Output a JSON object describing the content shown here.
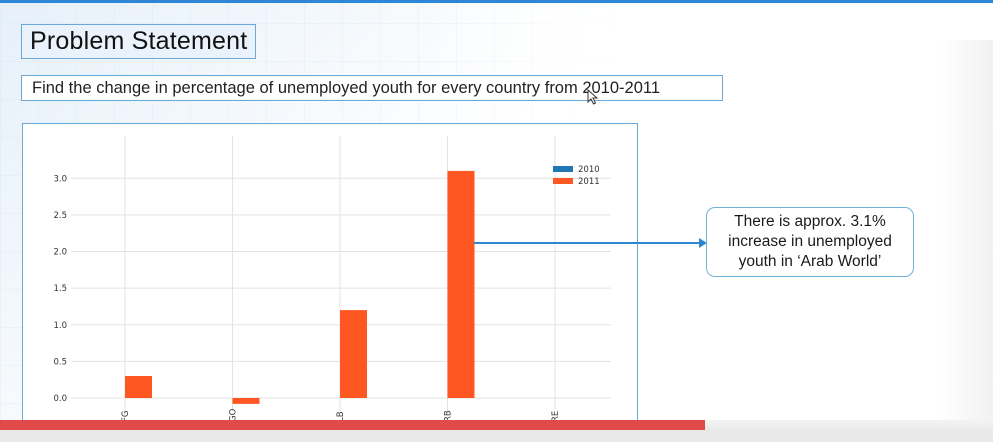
{
  "slide": {
    "title": "Problem Statement",
    "problem_text": "Find the change in percentage of unemployed youth for every country from 2010-2011",
    "callout_text": "There is approx. 3.1% increase in unemployed youth in ‘Arab World’",
    "cursor_icon": "mouse-cursor-icon"
  },
  "video": {
    "progress": 0.71,
    "progress_color": "#e04a4a"
  },
  "colors": {
    "accent": "#2e86d6",
    "series_2010": "#1f77b4",
    "series_2011": "#ff5722"
  },
  "chart_data": {
    "type": "bar",
    "categories": [
      "AFG",
      "AGO",
      "ALB",
      "ARB",
      "ARE"
    ],
    "tick_labels": [
      "FG",
      "GO",
      "LB",
      "RB",
      "RE"
    ],
    "series": [
      {
        "name": "2010",
        "values": [
          0,
          0,
          0,
          0,
          0
        ],
        "color": "#1f77b4"
      },
      {
        "name": "2011",
        "values": [
          0.3,
          -0.08,
          1.2,
          3.1,
          0
        ],
        "color": "#ff5722"
      }
    ],
    "yticks": [
      "0.0",
      "0.5",
      "1.0",
      "1.5",
      "2.0",
      "2.5",
      "3.0"
    ],
    "ylim": [
      -0.1,
      3.45
    ],
    "grid": true,
    "legend_position": "top-right"
  }
}
